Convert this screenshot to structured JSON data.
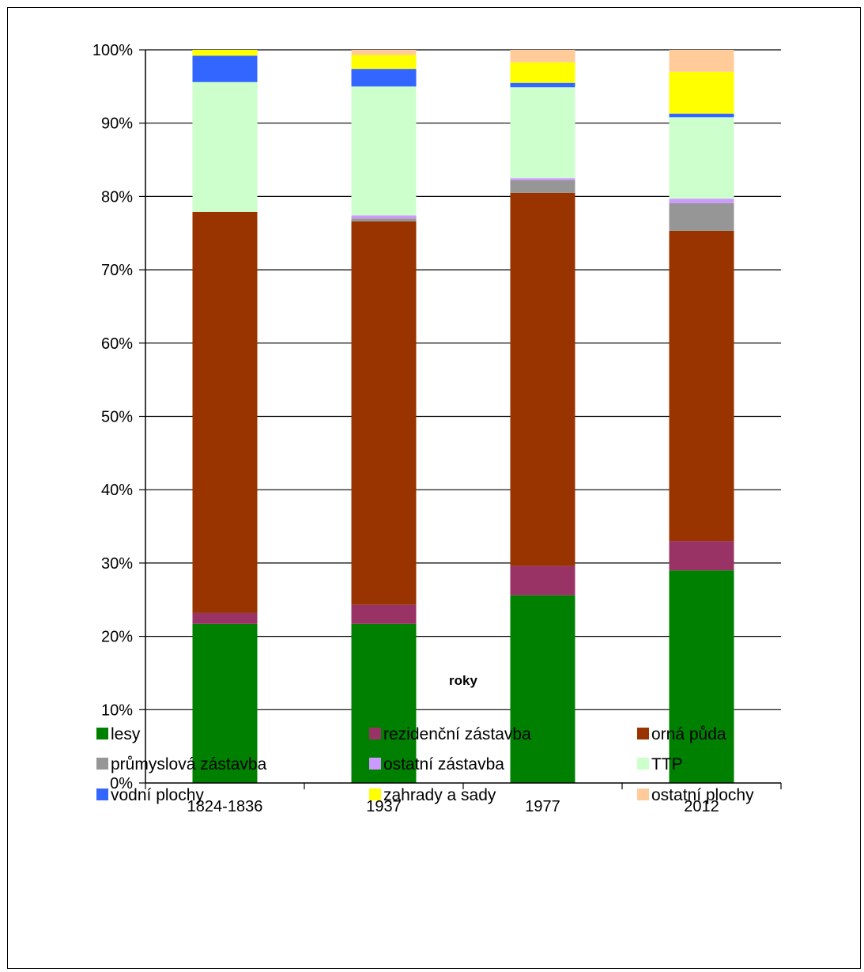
{
  "chart_data": {
    "type": "bar",
    "stacked": true,
    "percent_stacked": true,
    "title": "",
    "xlabel": "roky",
    "ylabel": "",
    "ylim": [
      0,
      100
    ],
    "y_ticks": [
      "0%",
      "10%",
      "20%",
      "30%",
      "40%",
      "50%",
      "60%",
      "70%",
      "80%",
      "90%",
      "100%"
    ],
    "grid": "horizontal",
    "legend_position": "bottom",
    "categories": [
      "1824-1836",
      "1937",
      "1977",
      "2012"
    ],
    "series": [
      {
        "name": "lesy",
        "color": "#008000",
        "values": [
          21.7,
          21.7,
          25.6,
          29.0
        ]
      },
      {
        "name": "rezidenční zástavba",
        "color": "#993366",
        "values": [
          1.5,
          2.6,
          4.0,
          4.0
        ]
      },
      {
        "name": "orná půda",
        "color": "#993300",
        "values": [
          54.7,
          52.3,
          50.9,
          42.3
        ]
      },
      {
        "name": "průmyslová zástavba",
        "color": "#969696",
        "values": [
          0.0,
          0.4,
          1.7,
          3.8
        ]
      },
      {
        "name": "ostatní zástavba",
        "color": "#CC99FF",
        "values": [
          0.0,
          0.4,
          0.3,
          0.6
        ]
      },
      {
        "name": "TTP",
        "color": "#CCFFCC",
        "values": [
          17.7,
          17.6,
          12.4,
          11.1
        ]
      },
      {
        "name": "vodní plochy",
        "color": "#3366FF",
        "values": [
          3.6,
          2.4,
          0.6,
          0.5
        ]
      },
      {
        "name": "zahrady a sady",
        "color": "#FFFF00",
        "values": [
          0.8,
          1.9,
          2.8,
          5.7
        ]
      },
      {
        "name": "ostatní plochy",
        "color": "#FFCC99",
        "values": [
          0.0,
          0.7,
          1.7,
          3.0
        ]
      }
    ]
  }
}
